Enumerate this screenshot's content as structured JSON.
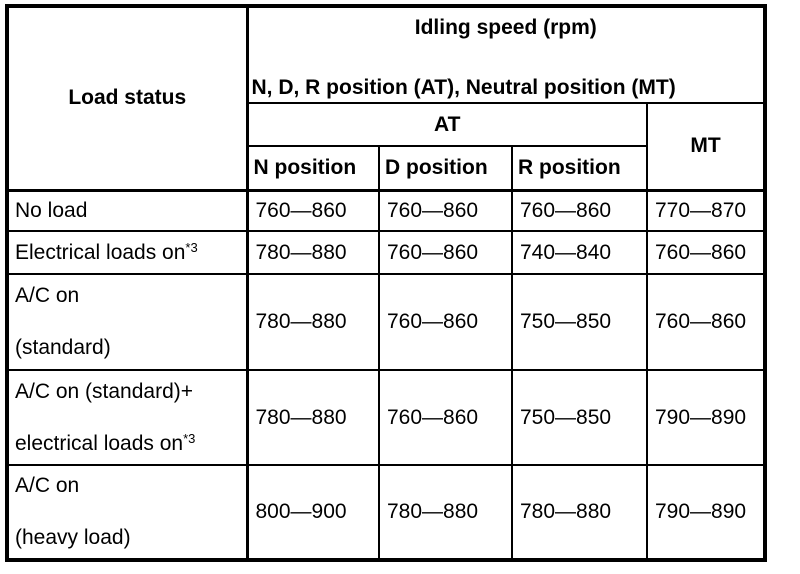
{
  "table": {
    "header": {
      "load_status": "Load status",
      "idling_speed_title": "Idling speed (rpm)",
      "idling_speed_subtitle": "N, D, R position (AT), Neutral position (MT)",
      "at_label": "AT",
      "mt_label": "MT",
      "position_columns": [
        "N position",
        "D position",
        "R position"
      ]
    },
    "rows": [
      {
        "label_lines": [
          {
            "text": "No load"
          }
        ],
        "values": [
          "760—860",
          "760—860",
          "760—860",
          "770—870"
        ]
      },
      {
        "label_lines": [
          {
            "text": "Electrical loads on",
            "sup": "*3"
          }
        ],
        "values": [
          "780—880",
          "760—860",
          "740—840",
          "760—860"
        ]
      },
      {
        "label_lines": [
          {
            "text": "A/C on"
          },
          {
            "text": "(standard)"
          }
        ],
        "values": [
          "780—880",
          "760—860",
          "750—850",
          "760—860"
        ]
      },
      {
        "label_lines": [
          {
            "text": "A/C on (standard)+"
          },
          {
            "text": "electrical loads on",
            "sup": "*3"
          }
        ],
        "values": [
          "780—880",
          "760—860",
          "750—850",
          "790—890"
        ]
      },
      {
        "label_lines": [
          {
            "text": "A/C on"
          },
          {
            "text": "(heavy load)"
          }
        ],
        "values": [
          "800—900",
          "780—880",
          "780—880",
          "790—890"
        ]
      }
    ],
    "colors": {
      "line": "#000000",
      "background": "#ffffff",
      "text": "#000000"
    }
  }
}
